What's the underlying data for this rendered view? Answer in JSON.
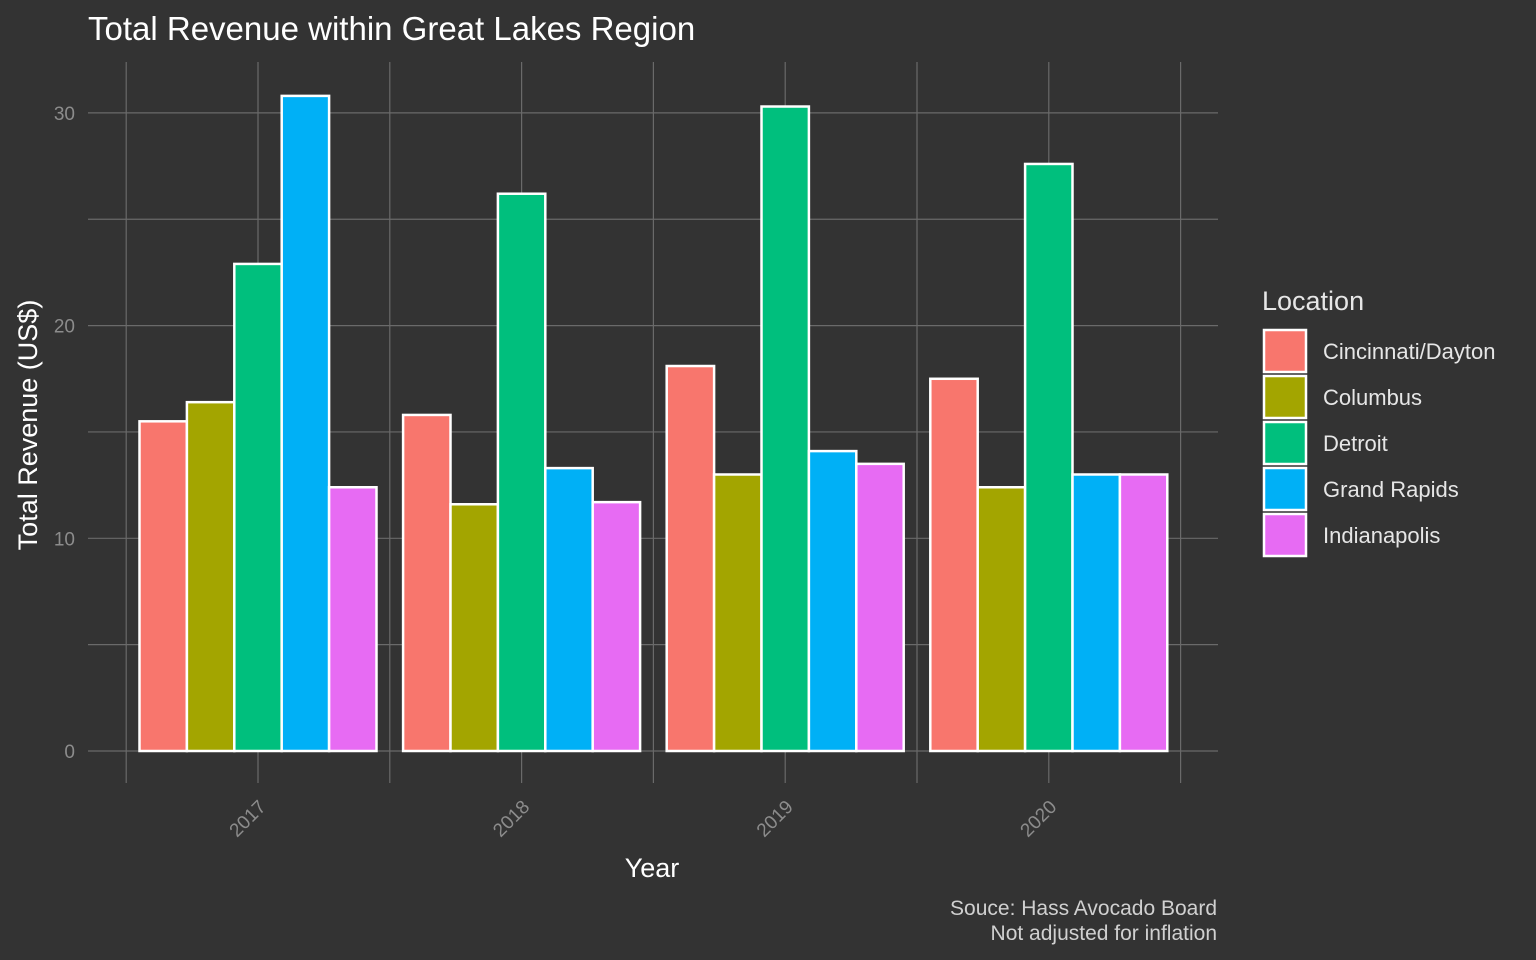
{
  "chart_data": {
    "type": "bar",
    "title": "Total Revenue within Great Lakes Region",
    "xlabel": "Year",
    "ylabel": "Total Revenue (US$)",
    "categories": [
      "2017",
      "2018",
      "2019",
      "2020"
    ],
    "series": [
      {
        "name": "Cincinnati/Dayton",
        "color": "#F8766D",
        "values": [
          15.5,
          15.8,
          18.1,
          17.5
        ]
      },
      {
        "name": "Columbus",
        "color": "#A3A500",
        "values": [
          16.4,
          11.6,
          13.0,
          12.4
        ]
      },
      {
        "name": "Detroit",
        "color": "#00BF7D",
        "values": [
          22.9,
          26.2,
          30.3,
          27.6
        ]
      },
      {
        "name": "Grand Rapids",
        "color": "#00B0F6",
        "values": [
          30.8,
          13.3,
          14.1,
          13.0
        ]
      },
      {
        "name": "Indianapolis",
        "color": "#E76BF3",
        "values": [
          12.4,
          11.7,
          13.5,
          13.0
        ]
      }
    ],
    "ylim": [
      0,
      32
    ],
    "yticks": [
      "0",
      "10",
      "20",
      "30"
    ],
    "grid": true,
    "legend": {
      "title": "Location",
      "placement": "right"
    },
    "caption": [
      "Souce: Hass Avocado Board",
      "Not adjusted for inflation"
    ]
  },
  "colors": {
    "background": "#333333",
    "grid": "#6a6a6a",
    "bar_outline": "#ffffff"
  }
}
